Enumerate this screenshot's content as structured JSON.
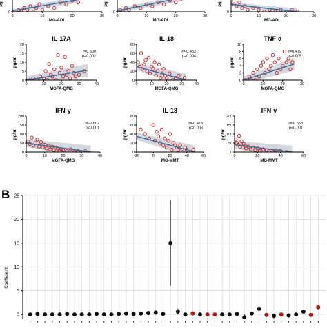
{
  "figure": {
    "panel_b_label": "B"
  },
  "chart_data": [
    {
      "id": "top-left",
      "type": "scatter",
      "title": "",
      "xlabel": "MG-ADL",
      "ylabel": "pg",
      "xlim": [
        0,
        30
      ],
      "ylim": [
        0,
        10
      ],
      "xticks": [
        0,
        10,
        20,
        30
      ],
      "yticks": [
        0
      ],
      "stats": "",
      "regression": {
        "x": [
          0,
          22
        ],
        "y": [
          0.5,
          6.5
        ]
      },
      "points": [
        [
          0,
          0
        ],
        [
          1,
          0
        ],
        [
          2,
          1
        ],
        [
          3,
          0
        ],
        [
          4,
          2
        ],
        [
          5,
          1
        ],
        [
          6,
          3
        ],
        [
          7,
          0
        ],
        [
          8,
          2
        ],
        [
          9,
          4
        ],
        [
          10,
          1
        ],
        [
          12,
          3
        ],
        [
          14,
          2
        ],
        [
          16,
          5
        ],
        [
          18,
          4
        ],
        [
          20,
          6
        ],
        [
          22,
          5
        ]
      ]
    },
    {
      "id": "top-mid",
      "type": "scatter",
      "title": "",
      "xlabel": "MG-ADL",
      "ylabel": "pg",
      "xlim": [
        0,
        30
      ],
      "ylim": [
        0,
        10
      ],
      "xticks": [
        0,
        10,
        20,
        30
      ],
      "yticks": [
        0
      ],
      "stats": "",
      "regression": {
        "x": [
          0,
          22
        ],
        "y": [
          0.5,
          7.5
        ]
      },
      "points": [
        [
          0,
          0
        ],
        [
          1,
          1
        ],
        [
          2,
          0
        ],
        [
          3,
          2
        ],
        [
          4,
          1
        ],
        [
          6,
          3
        ],
        [
          8,
          2
        ],
        [
          10,
          4
        ],
        [
          12,
          3
        ],
        [
          14,
          5
        ],
        [
          16,
          4
        ],
        [
          18,
          6
        ],
        [
          20,
          5
        ],
        [
          22,
          7
        ]
      ]
    },
    {
      "id": "top-right",
      "type": "scatter",
      "title": "",
      "xlabel": "MG-ADL",
      "ylabel": "pg",
      "xlim": [
        0,
        30
      ],
      "ylim": [
        0,
        10
      ],
      "xticks": [
        0,
        10,
        20,
        30
      ],
      "yticks": [
        0
      ],
      "stats": "",
      "regression": {
        "x": [
          0,
          24
        ],
        "y": [
          4,
          0
        ]
      },
      "points": [
        [
          0,
          6
        ],
        [
          1,
          4
        ],
        [
          2,
          3
        ],
        [
          3,
          5
        ],
        [
          4,
          2
        ],
        [
          5,
          3
        ],
        [
          6,
          1
        ],
        [
          8,
          2
        ],
        [
          10,
          1
        ],
        [
          12,
          0
        ],
        [
          14,
          1
        ],
        [
          16,
          0
        ],
        [
          18,
          1
        ],
        [
          20,
          0
        ],
        [
          22,
          1
        ],
        [
          24,
          0
        ]
      ]
    },
    {
      "id": "il17a",
      "type": "scatter",
      "title": "IL-17A",
      "xlabel": "MGFA-QMG",
      "ylabel": "pg/ml",
      "xlim": [
        0,
        40
      ],
      "ylim": [
        0,
        20
      ],
      "xticks": [
        0,
        10,
        20,
        30,
        40
      ],
      "yticks": [
        0,
        5,
        10,
        15,
        20
      ],
      "stats": [
        "r=0.500",
        "p=0.002"
      ],
      "regression": {
        "x": [
          0,
          35
        ],
        "y": [
          0,
          5.5
        ]
      },
      "points": [
        [
          2,
          0
        ],
        [
          4,
          1
        ],
        [
          6,
          0
        ],
        [
          8,
          2
        ],
        [
          10,
          1
        ],
        [
          11,
          5
        ],
        [
          12,
          0
        ],
        [
          13,
          9
        ],
        [
          14,
          3
        ],
        [
          15,
          2
        ],
        [
          16,
          6
        ],
        [
          17,
          0
        ],
        [
          18,
          14
        ],
        [
          19,
          4
        ],
        [
          20,
          7
        ],
        [
          21,
          2
        ],
        [
          22,
          13
        ],
        [
          23,
          3
        ],
        [
          24,
          5
        ],
        [
          25,
          1
        ],
        [
          26,
          8
        ],
        [
          27,
          4
        ],
        [
          28,
          2
        ],
        [
          30,
          3
        ],
        [
          33,
          5
        ]
      ]
    },
    {
      "id": "il18-qmg",
      "type": "scatter",
      "title": "IL-18",
      "xlabel": "MGFA-QMG",
      "ylabel": "pg/ml",
      "xlim": [
        0,
        40
      ],
      "ylim": [
        0,
        80
      ],
      "xticks": [
        0,
        10,
        20,
        30,
        40
      ],
      "yticks": [
        0,
        20,
        40,
        60,
        80
      ],
      "stats": [
        "r=-0.482",
        "p=0.004"
      ],
      "regression": {
        "x": [
          0,
          33
        ],
        "y": [
          30,
          0
        ]
      },
      "points": [
        [
          1,
          40
        ],
        [
          2,
          30
        ],
        [
          3,
          60
        ],
        [
          4,
          25
        ],
        [
          5,
          35
        ],
        [
          6,
          45
        ],
        [
          7,
          20
        ],
        [
          8,
          50
        ],
        [
          9,
          15
        ],
        [
          10,
          30
        ],
        [
          11,
          25
        ],
        [
          12,
          40
        ],
        [
          13,
          10
        ],
        [
          14,
          20
        ],
        [
          15,
          35
        ],
        [
          16,
          5
        ],
        [
          17,
          15
        ],
        [
          18,
          25
        ],
        [
          19,
          10
        ],
        [
          20,
          5
        ],
        [
          22,
          15
        ],
        [
          24,
          0
        ],
        [
          26,
          5
        ],
        [
          28,
          10
        ],
        [
          30,
          0
        ],
        [
          32,
          5
        ]
      ]
    },
    {
      "id": "tnfa",
      "type": "scatter",
      "title": "TNF-α",
      "xlabel": "MGFA-QMG",
      "ylabel": "pg/ml",
      "xlim": [
        0,
        30
      ],
      "ylim": [
        0,
        10
      ],
      "xticks": [
        0,
        10,
        20,
        30
      ],
      "yticks": [
        0,
        2,
        4,
        6,
        8,
        10
      ],
      "stats": [
        "r=0.479",
        "p=0.005"
      ],
      "regression": {
        "x": [
          0,
          26
        ],
        "y": [
          0,
          4.5
        ]
      },
      "points": [
        [
          1,
          0
        ],
        [
          2,
          0
        ],
        [
          3,
          1
        ],
        [
          4,
          0
        ],
        [
          5,
          2
        ],
        [
          6,
          0
        ],
        [
          7,
          3
        ],
        [
          8,
          1
        ],
        [
          9,
          4
        ],
        [
          10,
          5
        ],
        [
          11,
          2
        ],
        [
          12,
          6
        ],
        [
          13,
          3
        ],
        [
          14,
          4
        ],
        [
          15,
          7
        ],
        [
          16,
          5
        ],
        [
          17,
          2
        ],
        [
          18,
          6
        ],
        [
          19,
          3
        ],
        [
          20,
          4
        ],
        [
          21,
          8
        ],
        [
          22,
          5
        ],
        [
          23,
          6
        ],
        [
          24,
          3
        ],
        [
          25,
          5
        ]
      ]
    },
    {
      "id": "ifng-qmg",
      "type": "scatter",
      "title": "IFN-γ",
      "xlabel": "MGFA-QMG",
      "ylabel": "pg/ml",
      "xlim": [
        0,
        40
      ],
      "ylim": [
        0,
        200
      ],
      "xticks": [
        0,
        10,
        20,
        30,
        40
      ],
      "yticks": [
        0,
        50,
        100,
        150,
        200
      ],
      "stats": [
        "r=-0.602",
        "p<0.001"
      ],
      "regression": {
        "x": [
          0,
          35
        ],
        "y": [
          50,
          0
        ]
      },
      "points": [
        [
          1,
          60
        ],
        [
          2,
          45
        ],
        [
          3,
          80
        ],
        [
          4,
          35
        ],
        [
          5,
          50
        ],
        [
          6,
          70
        ],
        [
          7,
          30
        ],
        [
          8,
          55
        ],
        [
          9,
          25
        ],
        [
          10,
          40
        ],
        [
          11,
          20
        ],
        [
          12,
          35
        ],
        [
          13,
          15
        ],
        [
          14,
          30
        ],
        [
          15,
          10
        ],
        [
          16,
          25
        ],
        [
          17,
          20
        ],
        [
          18,
          5
        ],
        [
          19,
          15
        ],
        [
          20,
          10
        ],
        [
          22,
          5
        ],
        [
          24,
          15
        ],
        [
          26,
          0
        ],
        [
          28,
          5
        ],
        [
          30,
          0
        ],
        [
          32,
          5
        ]
      ]
    },
    {
      "id": "il18-mmt",
      "type": "scatter",
      "title": "IL-18",
      "xlabel": "MG-MMT",
      "ylabel": "pg/ml",
      "xlim": [
        -20,
        60
      ],
      "ylim": [
        0,
        80
      ],
      "xticks": [
        -20,
        0,
        20,
        40,
        60
      ],
      "yticks": [
        0,
        20,
        40,
        60,
        80
      ],
      "stats": [
        "r=-0.478",
        "p=0.006"
      ],
      "regression": {
        "x": [
          -20,
          50
        ],
        "y": [
          35,
          0
        ]
      },
      "points": [
        [
          -15,
          50
        ],
        [
          -10,
          40
        ],
        [
          -5,
          30
        ],
        [
          0,
          60
        ],
        [
          2,
          25
        ],
        [
          4,
          45
        ],
        [
          6,
          35
        ],
        [
          8,
          20
        ],
        [
          10,
          50
        ],
        [
          12,
          15
        ],
        [
          14,
          30
        ],
        [
          16,
          10
        ],
        [
          18,
          25
        ],
        [
          20,
          40
        ],
        [
          22,
          5
        ],
        [
          24,
          20
        ],
        [
          26,
          15
        ],
        [
          28,
          10
        ],
        [
          30,
          5
        ],
        [
          32,
          15
        ],
        [
          35,
          0
        ],
        [
          38,
          10
        ],
        [
          40,
          5
        ],
        [
          45,
          0
        ],
        [
          48,
          5
        ]
      ]
    },
    {
      "id": "ifng-mmt",
      "type": "scatter",
      "title": "IFN-γ",
      "xlabel": "MG-MMT",
      "ylabel": "pg/ml",
      "xlim": [
        0,
        60
      ],
      "ylim": [
        0,
        200
      ],
      "xticks": [
        0,
        20,
        40,
        60
      ],
      "yticks": [
        0,
        50,
        100,
        150,
        200
      ],
      "stats": [
        "r=-0.558",
        "p<0.001"
      ],
      "regression": {
        "x": [
          0,
          50
        ],
        "y": [
          40,
          0
        ]
      },
      "points": [
        [
          1,
          70
        ],
        [
          2,
          50
        ],
        [
          3,
          40
        ],
        [
          4,
          90
        ],
        [
          5,
          30
        ],
        [
          6,
          60
        ],
        [
          7,
          25
        ],
        [
          8,
          45
        ],
        [
          9,
          35
        ],
        [
          10,
          20
        ],
        [
          12,
          30
        ],
        [
          14,
          15
        ],
        [
          16,
          25
        ],
        [
          18,
          10
        ],
        [
          20,
          20
        ],
        [
          22,
          5
        ],
        [
          25,
          15
        ],
        [
          28,
          10
        ],
        [
          30,
          5
        ],
        [
          33,
          0
        ],
        [
          36,
          10
        ],
        [
          40,
          5
        ],
        [
          45,
          0
        ]
      ]
    },
    {
      "id": "panel-b",
      "type": "scatter",
      "title": "",
      "xlabel": "",
      "ylabel": "Coefficient",
      "xlim": [
        0,
        41
      ],
      "ylim": [
        -1,
        25
      ],
      "yticks": [
        0,
        5,
        10,
        15,
        20,
        25
      ],
      "grid": true,
      "points": [
        {
          "x": 1,
          "y": 0,
          "color": "#111111"
        },
        {
          "x": 2,
          "y": 0.1,
          "color": "#111111"
        },
        {
          "x": 3,
          "y": 0,
          "color": "#111111"
        },
        {
          "x": 4,
          "y": 0,
          "color": "#111111"
        },
        {
          "x": 5,
          "y": 0,
          "color": "#111111"
        },
        {
          "x": 6,
          "y": 0.1,
          "color": "#111111"
        },
        {
          "x": 7,
          "y": 0,
          "color": "#111111"
        },
        {
          "x": 8,
          "y": 0,
          "color": "#111111"
        },
        {
          "x": 9,
          "y": 0,
          "color": "#111111"
        },
        {
          "x": 10,
          "y": 0.1,
          "color": "#111111"
        },
        {
          "x": 11,
          "y": 0,
          "color": "#111111"
        },
        {
          "x": 12,
          "y": 0,
          "color": "#111111"
        },
        {
          "x": 13,
          "y": 0.1,
          "color": "#111111"
        },
        {
          "x": 14,
          "y": 0.2,
          "color": "#111111"
        },
        {
          "x": 15,
          "y": 0.1,
          "color": "#111111"
        },
        {
          "x": 16,
          "y": 0.2,
          "color": "#111111"
        },
        {
          "x": 17,
          "y": 0.3,
          "color": "#111111"
        },
        {
          "x": 18,
          "y": 0.4,
          "color": "#111111"
        },
        {
          "x": 19,
          "y": 0.1,
          "color": "#111111"
        },
        {
          "x": 20,
          "y": 15,
          "lo": 6,
          "hi": 24,
          "color": "#111111"
        },
        {
          "x": 21,
          "y": 0.6,
          "lo": 0,
          "hi": 1.2,
          "color": "#111111"
        },
        {
          "x": 22,
          "y": 0,
          "color": "#111111"
        },
        {
          "x": 23,
          "y": 0.2,
          "color": "#b51717"
        },
        {
          "x": 24,
          "y": 0,
          "color": "#111111"
        },
        {
          "x": 25,
          "y": 0,
          "color": "#b51717"
        },
        {
          "x": 26,
          "y": 0,
          "color": "#b51717"
        },
        {
          "x": 27,
          "y": 0,
          "color": "#111111"
        },
        {
          "x": 28,
          "y": 0,
          "color": "#111111"
        },
        {
          "x": 29,
          "y": 0.1,
          "color": "#111111"
        },
        {
          "x": 30,
          "y": -0.6,
          "lo": -1,
          "hi": 0,
          "color": "#111111"
        },
        {
          "x": 31,
          "y": 0.2,
          "color": "#111111"
        },
        {
          "x": 32,
          "y": 1.2,
          "lo": 0.8,
          "hi": 1.6,
          "color": "#111111"
        },
        {
          "x": 33,
          "y": -0.1,
          "color": "#b51717"
        },
        {
          "x": 34,
          "y": -0.3,
          "lo": -0.8,
          "hi": 0.2,
          "color": "#111111"
        },
        {
          "x": 35,
          "y": 0,
          "color": "#b51717"
        },
        {
          "x": 36,
          "y": -0.2,
          "color": "#111111"
        },
        {
          "x": 37,
          "y": 0,
          "color": "#111111"
        },
        {
          "x": 38,
          "y": 0.6,
          "color": "#111111"
        },
        {
          "x": 39,
          "y": -0.1,
          "color": "#b51717"
        },
        {
          "x": 40,
          "y": 1.5,
          "color": "#b51717"
        }
      ]
    }
  ],
  "colors": {
    "point_outline": "#c62828",
    "regression": "#2e6da4",
    "ci_band": "#c8cdd6",
    "grid": "#d6d6d6",
    "axis": "#000000",
    "black_point": "#111111",
    "red_point": "#b51717"
  }
}
